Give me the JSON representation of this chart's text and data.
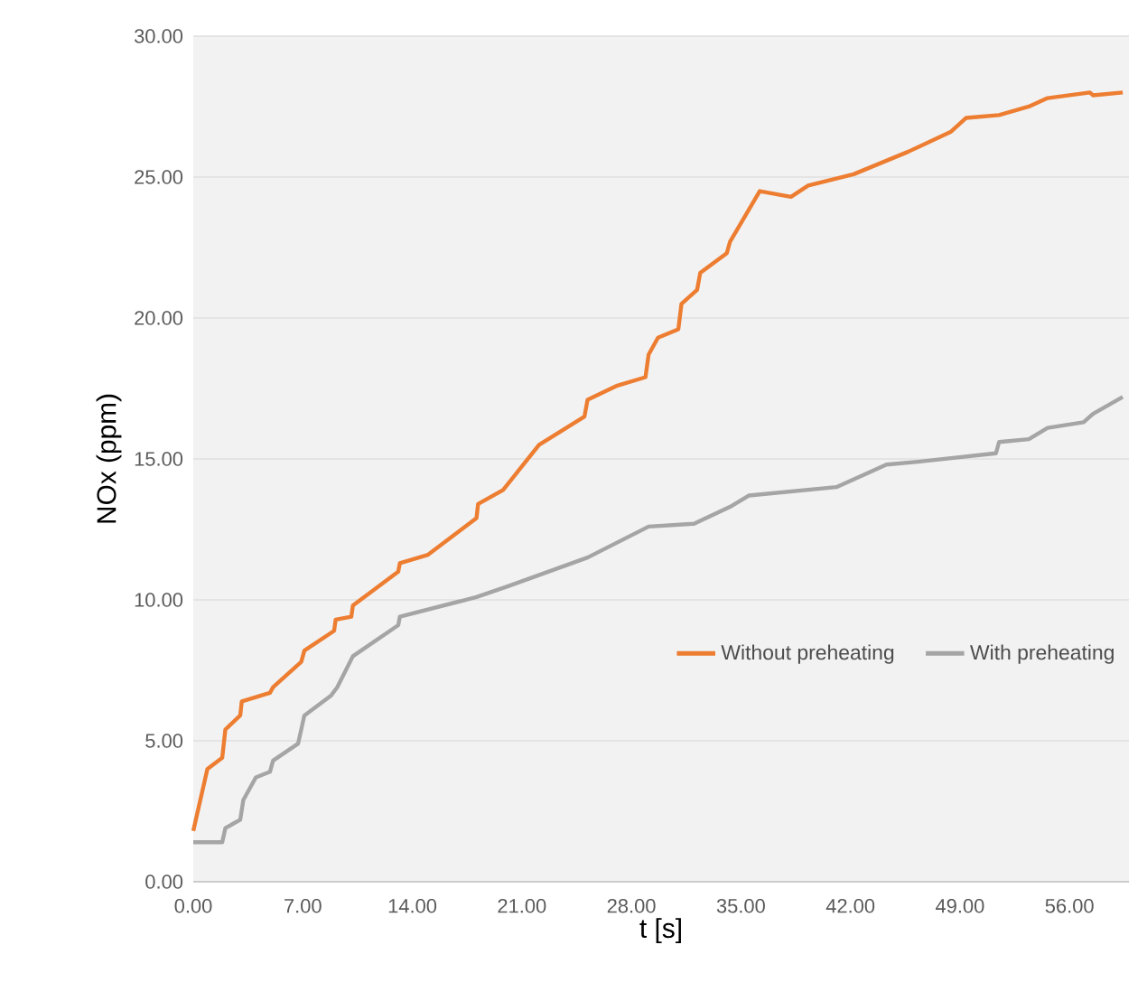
{
  "chart_data": {
    "type": "line",
    "xlabel": "t [s]",
    "ylabel": "NOx (ppm)",
    "xlim": [
      0,
      59.8
    ],
    "ylim": [
      0,
      30
    ],
    "xticks": [
      {
        "value": 0,
        "label": "0.00"
      },
      {
        "value": 7,
        "label": "7.00"
      },
      {
        "value": 14,
        "label": "14.00"
      },
      {
        "value": 21,
        "label": "21.00"
      },
      {
        "value": 28,
        "label": "28.00"
      },
      {
        "value": 35,
        "label": "35.00"
      },
      {
        "value": 42,
        "label": "42.00"
      },
      {
        "value": 49,
        "label": "49.00"
      },
      {
        "value": 56,
        "label": "56.00"
      }
    ],
    "yticks": [
      {
        "value": 0,
        "label": "0.00"
      },
      {
        "value": 5,
        "label": "5.00"
      },
      {
        "value": 10,
        "label": "10.00"
      },
      {
        "value": 15,
        "label": "15.00"
      },
      {
        "value": 20,
        "label": "20.00"
      },
      {
        "value": 25,
        "label": "25.00"
      },
      {
        "value": 30,
        "label": "30.00"
      }
    ],
    "grid": "y",
    "legend": "bottom right",
    "marker": "none",
    "line_style": "solid",
    "series": [
      {
        "name": "Without preheating",
        "color": "#ed7d31",
        "x": [
          0,
          0.9,
          1.85,
          2.05,
          3.0,
          3.1,
          4.9,
          5.1,
          6.9,
          7.1,
          9.0,
          9.1,
          10.1,
          10.2,
          13.1,
          13.2,
          15.0,
          18.1,
          18.2,
          19.8,
          22.1,
          25.0,
          25.2,
          27.1,
          28.9,
          29.1,
          29.7,
          31.0,
          31.2,
          32.2,
          32.4,
          34.1,
          34.3,
          36.2,
          38.2,
          39.3,
          42.2,
          45.7,
          48.4,
          49.4,
          51.5,
          53.4,
          54.6,
          57.3,
          57.5,
          59.4
        ],
        "values": [
          1.8,
          4.0,
          4.4,
          5.4,
          5.9,
          6.4,
          6.7,
          6.9,
          7.8,
          8.2,
          8.9,
          9.3,
          9.4,
          9.8,
          11.0,
          11.3,
          11.6,
          12.9,
          13.4,
          13.9,
          15.5,
          16.5,
          17.1,
          17.6,
          17.9,
          18.7,
          19.3,
          19.6,
          20.5,
          21.0,
          21.6,
          22.3,
          22.7,
          24.5,
          24.3,
          24.7,
          25.1,
          25.9,
          26.6,
          27.1,
          27.2,
          27.5,
          27.8,
          28.0,
          27.9,
          28.0
        ]
      },
      {
        "name": "With preheating",
        "color": "#a5a5a5",
        "x": [
          0,
          1.85,
          2.05,
          3.0,
          3.2,
          4.0,
          4.9,
          5.1,
          6.7,
          7.1,
          8.8,
          9.2,
          10.2,
          13.1,
          13.2,
          18.1,
          20.2,
          25.2,
          29.1,
          32.0,
          34.3,
          35.5,
          41.1,
          44.3,
          46.3,
          51.3,
          51.5,
          53.4,
          54.6,
          56.9,
          57.5,
          59.4
        ],
        "values": [
          1.4,
          1.4,
          1.9,
          2.2,
          2.9,
          3.7,
          3.9,
          4.3,
          4.9,
          5.9,
          6.6,
          6.9,
          8.0,
          9.1,
          9.4,
          10.1,
          10.5,
          11.5,
          12.6,
          12.7,
          13.3,
          13.7,
          14.0,
          14.8,
          14.9,
          15.2,
          15.6,
          15.7,
          16.1,
          16.3,
          16.6,
          17.2
        ]
      }
    ]
  }
}
